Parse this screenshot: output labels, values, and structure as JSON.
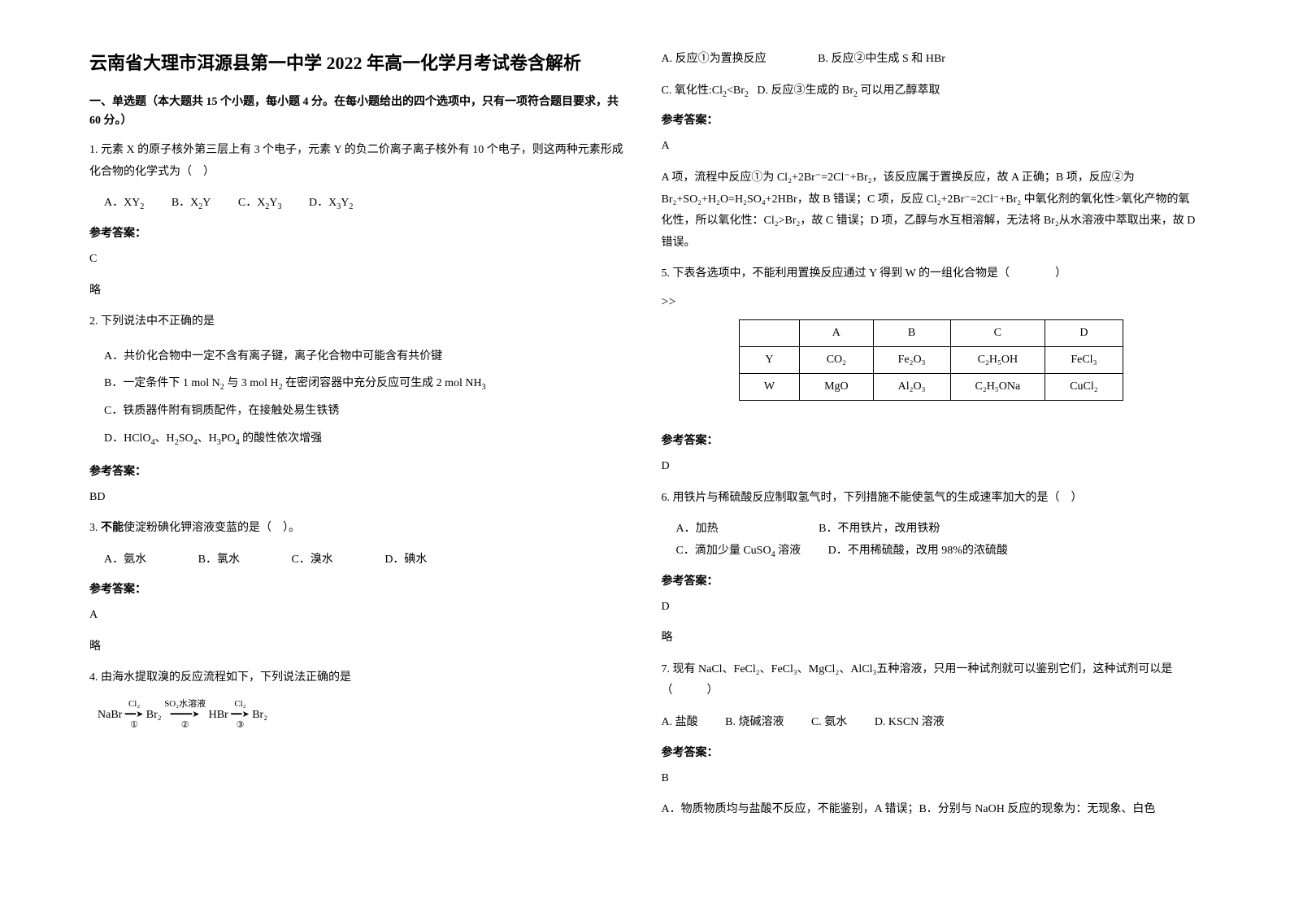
{
  "title": "云南省大理市洱源县第一中学 2022 年高一化学月考试卷含解析",
  "section1_header": "一、单选题（本大题共 15 个小题，每小题 4 分。在每小题给出的四个选项中，只有一项符合题目要求，共 60 分。）",
  "q1_text": "1. 元素 X 的原子核外第三层上有 3 个电子，元素 Y 的负二价离子离子核外有 10 个电子，则这两种元素形成化合物的化学式为（　）",
  "q1_optA": "A．XY",
  "q1_optB": "B．X",
  "q1_optB2": "Y",
  "q1_optC": "C．X",
  "q1_optC2": "Y",
  "q1_optD": "D．X",
  "q1_optD2": "Y",
  "answer_label": "参考答案：",
  "q1_ans": "C",
  "q1_exp": "略",
  "q2_text": "2. 下列说法中不正确的是",
  "q2_optA": "A．共价化合物中一定不含有离子键，离子化合物中可能含有共价键",
  "q2_optB_pre": "B．一定条件下 1 mol N",
  "q2_optB_mid": " 与 3 mol H",
  "q2_optB_mid2": " 在密闭容器中充分反应可生成 2 mol NH",
  "q2_optC": "C．铁质器件附有铜质配件，在接触处易生铁锈",
  "q2_optD_pre": "D．HClO",
  "q2_optD_mid": "、H",
  "q2_optD_mid2": "SO",
  "q2_optD_mid3": "、H",
  "q2_optD_mid4": "PO",
  "q2_optD_end": " 的酸性依次增强",
  "q2_ans": "BD",
  "q3_text_pre": "3. ",
  "q3_text_bold": "不能",
  "q3_text_post": "使淀粉碘化钾溶液变蓝的是（　）。",
  "q3_optA": "A．氨水",
  "q3_optB": "B．氯水",
  "q3_optC": "C．溴水",
  "q3_optD": "D．碘水",
  "q3_ans": "A",
  "q3_exp": "略",
  "q4_text": "4. 由海水提取溴的反应流程如下，下列说法正确的是",
  "flow_nabr": "NaBr",
  "flow_cl2": "Cl₂",
  "flow_c1": "①",
  "flow_br2": "Br₂",
  "flow_so2": "SO₂水溶液",
  "flow_c2": "②",
  "flow_hbr": "HBr",
  "flow_c3": "③",
  "q4_optA": "A. 反应①为置换反应",
  "q4_optB": "B. 反应②中生成 S 和 HBr",
  "q4_optC_pre": "C. 氧化性:Cl",
  "q4_optC_mid": "<Br",
  "q4_optD_pre": "D. 反应③生成的 Br",
  "q4_optD_end": " 可以用乙醇萃取",
  "q4_ans": "A",
  "q4_exp": "A 项，流程中反应①为 Cl₂+2Br⁻=2Cl⁻+Br₂，该反应属于置换反应，故 A 正确；B 项，反应②为 Br₂+SO₂+H₂O=H₂SO₄+2HBr，故 B 错误；C 项，反应 Cl₂+2Br⁻=2Cl⁻+Br₂ 中氧化剂的氧化性>氧化产物的氧化性，所以氧化性：Cl₂>Br₂，故 C 错误；D 项，乙醇与水互相溶解，无法将 Br₂从水溶液中萃取出来，故 D 错误。",
  "q5_text": "5. 下表各选项中，不能利用置换反应通过 Y 得到 W 的一组化合物是（　　　　）",
  "table": {
    "headers": [
      "",
      "A",
      "B",
      "C",
      "D"
    ],
    "rows": [
      [
        "Y",
        "CO₂",
        "Fe₂O₃",
        "C₂H₅OH",
        "FeCl₃"
      ],
      [
        "W",
        "MgO",
        "Al₂O₃",
        "C₂H₅ONa",
        "CuCl₂"
      ]
    ]
  },
  "q5_ans": "D",
  "q6_text": "6. 用铁片与稀硫酸反应制取氢气时，下列措施不能使氢气的生成速率加大的是（　）",
  "q6_optA": "A．加热",
  "q6_optB": "B．不用铁片，改用铁粉",
  "q6_optC_pre": "C．滴加少量 CuSO",
  "q6_optC_end": " 溶液",
  "q6_optD": "D．不用稀硫酸，改用 98%的浓硫酸",
  "q6_ans": "D",
  "q6_exp": "略",
  "q7_text": "7. 现有 NaCl、FeCl₂、FeCl₃、MgCl₂、AlCl₃五种溶液，只用一种试剂就可以鉴别它们，这种试剂可以是（　　　）",
  "q7_optA": "A. 盐酸",
  "q7_optB": "B. 烧碱溶液",
  "q7_optC": "C. 氨水",
  "q7_optD": "D. KSCN 溶液",
  "q7_ans": "B",
  "q7_exp": "A．物质物质均与盐酸不反应，不能鉴别，A 错误；B．分别与 NaOH 反应的现象为：无现象、白色"
}
